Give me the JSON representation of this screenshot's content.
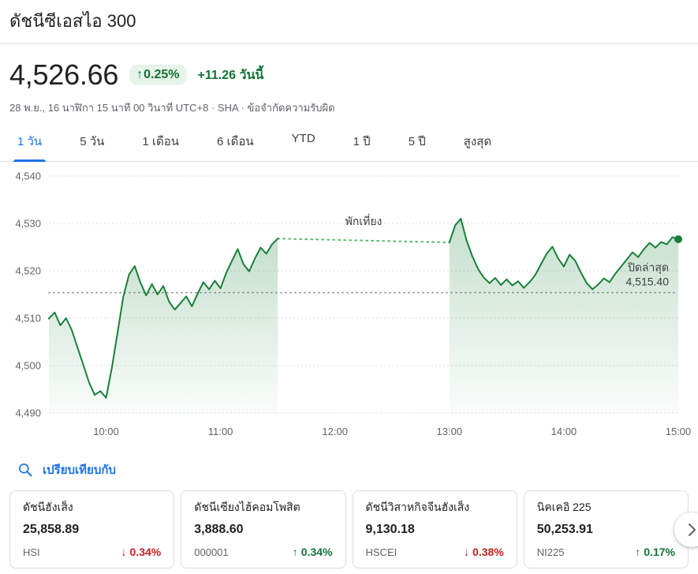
{
  "header": {
    "title": "ดัชนีซีเอสไอ 300"
  },
  "quote": {
    "price": "4,526.66",
    "badge_arrow": "↑",
    "change_percent": "0.25%",
    "change_today": "+11.26 วันนี้",
    "timestamp": "28 พ.ย., 16 นาฬิกา 15 นาที 00 วินาที UTC+8 · SHA ·",
    "disclaimer": "ข้อจำกัดความรับผิด"
  },
  "range_tabs": [
    {
      "label": "1 วัน",
      "active": true
    },
    {
      "label": "5 วัน",
      "active": false
    },
    {
      "label": "1 เดือน",
      "active": false
    },
    {
      "label": "6 เดือน",
      "active": false
    },
    {
      "label": "YTD",
      "active": false
    },
    {
      "label": "1 ปี",
      "active": false
    },
    {
      "label": "5 ปี",
      "active": false
    },
    {
      "label": "สูงสุด",
      "active": false
    }
  ],
  "chart_data": {
    "type": "line",
    "ylim": [
      4490,
      4540
    ],
    "yticks": [
      4490,
      4500,
      4510,
      4520,
      4530,
      4540
    ],
    "ytick_labels": [
      "4,490",
      "4,500",
      "4,510",
      "4,520",
      "4,530",
      "4,540"
    ],
    "xticks": [
      "10:00",
      "11:00",
      "12:00",
      "13:00",
      "14:00",
      "15:00"
    ],
    "x_domain": [
      "09:30",
      "15:00"
    ],
    "line_color": "#188038",
    "grid_color": "#dadce0",
    "previous_close": {
      "value": 4515.4,
      "label_title": "ปิดล่าสุด",
      "label_value": "4,515.40"
    },
    "lunch_break": {
      "label": "พักเที่ยง",
      "start": "11:30",
      "end": "13:00"
    },
    "last_price": 4526.66,
    "series": [
      {
        "name": "morning-session",
        "points": [
          [
            "09:30",
            4509.9
          ],
          [
            "09:33",
            4511.2
          ],
          [
            "09:36",
            4508.5
          ],
          [
            "09:39",
            4510.0
          ],
          [
            "09:42",
            4507.5
          ],
          [
            "09:45",
            4503.8
          ],
          [
            "09:48",
            4500.2
          ],
          [
            "09:51",
            4496.5
          ],
          [
            "09:54",
            4493.8
          ],
          [
            "09:57",
            4494.6
          ],
          [
            "10:00",
            4493.2
          ],
          [
            "10:03",
            4499.5
          ],
          [
            "10:06",
            4507.0
          ],
          [
            "10:09",
            4514.5
          ],
          [
            "10:12",
            4519.2
          ],
          [
            "10:15",
            4521.0
          ],
          [
            "10:18",
            4517.5
          ],
          [
            "10:21",
            4514.8
          ],
          [
            "10:24",
            4517.2
          ],
          [
            "10:27",
            4515.0
          ],
          [
            "10:30",
            4516.8
          ],
          [
            "10:33",
            4513.5
          ],
          [
            "10:36",
            4511.8
          ],
          [
            "10:39",
            4513.2
          ],
          [
            "10:42",
            4514.6
          ],
          [
            "10:45",
            4512.5
          ],
          [
            "10:48",
            4515.2
          ],
          [
            "10:51",
            4517.6
          ],
          [
            "10:54",
            4516.1
          ],
          [
            "10:57",
            4517.9
          ],
          [
            "11:00",
            4516.3
          ],
          [
            "11:03",
            4519.6
          ],
          [
            "11:06",
            4522.1
          ],
          [
            "11:09",
            4524.6
          ],
          [
            "11:12",
            4521.4
          ],
          [
            "11:15",
            4519.9
          ],
          [
            "11:18",
            4522.6
          ],
          [
            "11:21",
            4524.9
          ],
          [
            "11:24",
            4523.6
          ],
          [
            "11:27",
            4525.6
          ],
          [
            "11:30",
            4526.8
          ]
        ]
      },
      {
        "name": "afternoon-session",
        "points": [
          [
            "13:00",
            4526.0
          ],
          [
            "13:03",
            4529.6
          ],
          [
            "13:06",
            4531.0
          ],
          [
            "13:09",
            4526.4
          ],
          [
            "13:12",
            4523.1
          ],
          [
            "13:15",
            4520.4
          ],
          [
            "13:18",
            4518.6
          ],
          [
            "13:21",
            4517.4
          ],
          [
            "13:24",
            4518.5
          ],
          [
            "13:27",
            4517.0
          ],
          [
            "13:30",
            4518.2
          ],
          [
            "13:33",
            4516.9
          ],
          [
            "13:36",
            4517.8
          ],
          [
            "13:39",
            4516.4
          ],
          [
            "13:42",
            4517.6
          ],
          [
            "13:45",
            4519.1
          ],
          [
            "13:48",
            4521.4
          ],
          [
            "13:51",
            4523.6
          ],
          [
            "13:54",
            4525.1
          ],
          [
            "13:57",
            4522.6
          ],
          [
            "14:00",
            4520.9
          ],
          [
            "14:03",
            4523.4
          ],
          [
            "14:06",
            4522.1
          ],
          [
            "14:09",
            4519.6
          ],
          [
            "14:12",
            4517.4
          ],
          [
            "14:15",
            4516.1
          ],
          [
            "14:18",
            4517.1
          ],
          [
            "14:21",
            4518.4
          ],
          [
            "14:24",
            4517.6
          ],
          [
            "14:27",
            4519.4
          ],
          [
            "14:30",
            4520.9
          ],
          [
            "14:33",
            4522.4
          ],
          [
            "14:36",
            4523.9
          ],
          [
            "14:39",
            4522.9
          ],
          [
            "14:42",
            4524.6
          ],
          [
            "14:45",
            4525.9
          ],
          [
            "14:48",
            4524.9
          ],
          [
            "14:51",
            4526.1
          ],
          [
            "14:54",
            4525.6
          ],
          [
            "14:57",
            4527.1
          ],
          [
            "15:00",
            4526.66
          ]
        ]
      }
    ]
  },
  "compare": {
    "label": "เปรียบเทียบกับ",
    "cards": [
      {
        "name": "ดัชนีฮั่งเส็ง",
        "price": "25,858.89",
        "ticker": "HSI",
        "arrow": "↓",
        "change": "0.34%",
        "direction": "down"
      },
      {
        "name": "ดัชนีเซี่ยงไฮ้คอมโพสิต",
        "price": "3,888.60",
        "ticker": "000001",
        "arrow": "↑",
        "change": "0.34%",
        "direction": "up"
      },
      {
        "name": "ดัชนีวิสาหกิจจีนฮั่งเส็ง",
        "price": "9,130.18",
        "ticker": "HSCEI",
        "arrow": "↓",
        "change": "0.38%",
        "direction": "down"
      },
      {
        "name": "นิคเคอิ 225",
        "price": "50,253.91",
        "ticker": "NI225",
        "arrow": "↑",
        "change": "0.17%",
        "direction": "up"
      }
    ]
  }
}
